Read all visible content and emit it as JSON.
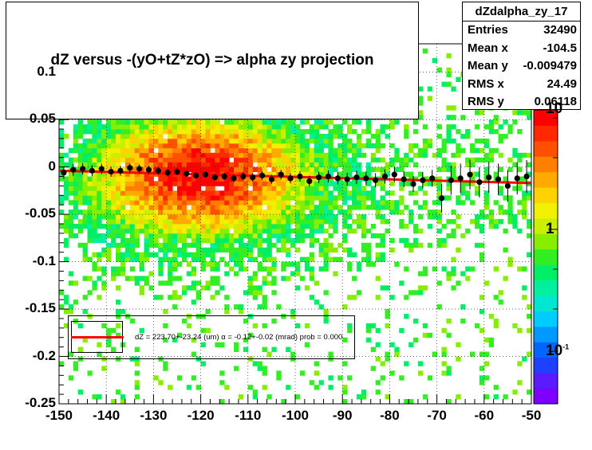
{
  "chart_data": {
    "type": "heatmap",
    "title": "dZ  versus -(yO+tZ*zO) =>  alpha zy projection",
    "xlim": [
      -150,
      -50
    ],
    "ylim": [
      -0.25,
      0.13
    ],
    "x_ticks": [
      "-150",
      "-140",
      "-130",
      "-120",
      "-110",
      "-100",
      "-90",
      "-80",
      "-70",
      "-60",
      "-50"
    ],
    "y_ticks": [
      "0.1",
      "0.05",
      "0",
      "-0.05",
      "-0.1",
      "-0.15",
      "-0.2",
      "-0.25"
    ],
    "z_scale": "log",
    "z_tick_labels": [
      "10",
      "1",
      "10"
    ],
    "z_exponent_hint": "-1",
    "grid": true,
    "profile_points": {
      "x": [
        -149,
        -147,
        -145,
        -143,
        -141,
        -139,
        -137,
        -135,
        -133,
        -131,
        -129,
        -127,
        -125,
        -123,
        -121,
        -119,
        -117,
        -115,
        -113,
        -111,
        -109,
        -107,
        -105,
        -103,
        -101,
        -99,
        -97,
        -95,
        -93,
        -91,
        -89,
        -87,
        -85,
        -83,
        -81,
        -79,
        -77,
        -75,
        -73,
        -71,
        -69,
        -67,
        -65,
        -63,
        -61,
        -59,
        -57,
        -55,
        -53,
        -51
      ],
      "y": [
        -0.006,
        -0.003,
        -0.002,
        -0.004,
        -0.002,
        -0.005,
        -0.004,
        -0.001,
        -0.002,
        -0.003,
        -0.004,
        -0.006,
        -0.005,
        -0.007,
        -0.009,
        -0.008,
        -0.011,
        -0.01,
        -0.012,
        -0.01,
        -0.011,
        -0.009,
        -0.013,
        -0.008,
        -0.012,
        -0.01,
        -0.015,
        -0.011,
        -0.01,
        -0.012,
        -0.013,
        -0.011,
        -0.012,
        -0.014,
        -0.01,
        -0.008,
        -0.013,
        -0.018,
        -0.014,
        -0.012,
        -0.033,
        -0.014,
        -0.012,
        -0.008,
        -0.016,
        -0.011,
        -0.013,
        -0.02,
        -0.012,
        -0.01
      ]
    },
    "fit_line": {
      "x": [
        -150,
        -50
      ],
      "y": [
        -0.004,
        -0.017
      ],
      "color": "#ff0000"
    },
    "colors": {
      "profile": "#000000",
      "fit": "#ff0000"
    }
  },
  "stats": {
    "name": "dZdalpha_zy_17",
    "rows": [
      {
        "label": "Entries",
        "value": "32490"
      },
      {
        "label": "Mean x",
        "value": "-104.5"
      },
      {
        "label": "Mean y",
        "value": "-0.009479"
      },
      {
        "label": "RMS x",
        "value": "24.49"
      },
      {
        "label": "RMS y",
        "value": "0.06118"
      }
    ]
  },
  "legend": {
    "fit_text": "dZ = 223.70+-23.24 (um) α = -0.12+-0.02 (mrad) prob = 0.000"
  }
}
